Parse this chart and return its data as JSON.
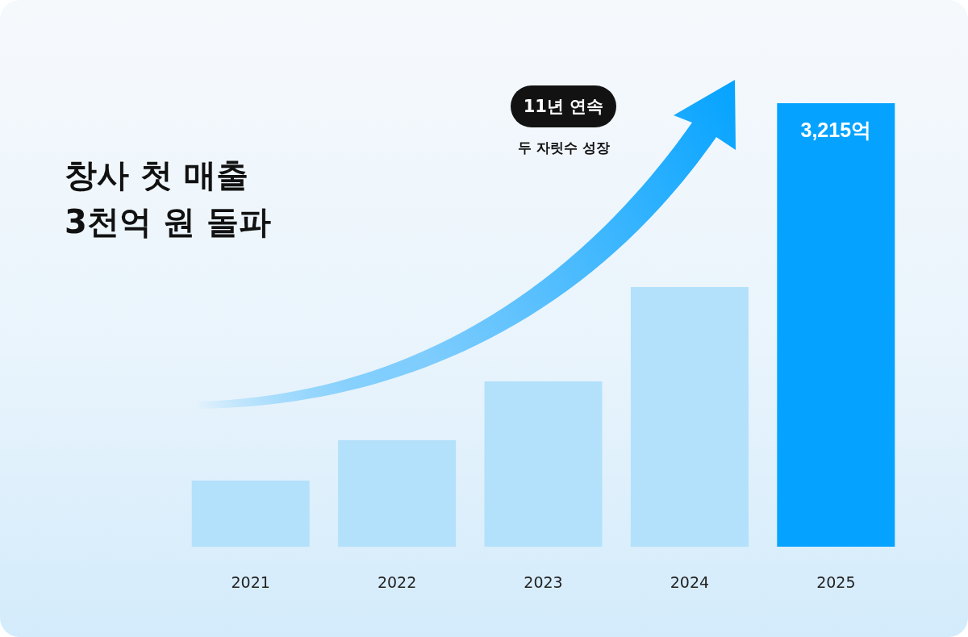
{
  "chart_data": {
    "type": "bar",
    "title": "창사 첫 매출 3천억 원 돌파",
    "categories": [
      "2021",
      "2022",
      "2023",
      "2024",
      "2025"
    ],
    "values": [
      479,
      772,
      1198,
      1882,
      3215
    ],
    "colors": [
      "#b3e1fb",
      "#b3e1fb",
      "#b3e1fb",
      "#b3e1fb",
      "#05a3ff"
    ],
    "value_labels": [
      null,
      null,
      null,
      null,
      "3,215억"
    ],
    "annotations": [
      "11년 연속",
      "두 자릿수 성장"
    ]
  }
}
